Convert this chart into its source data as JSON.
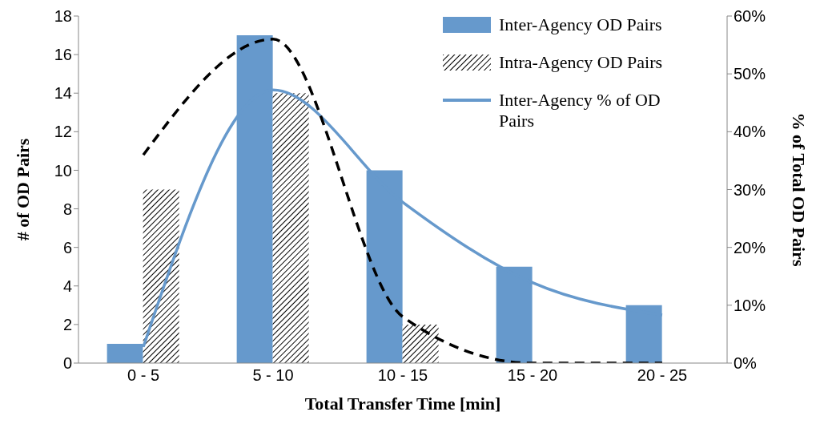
{
  "chart_data": {
    "type": "bar",
    "xlabel": "Total Transfer Time [min]",
    "ylabel": "# of OD Pairs",
    "y2label": "% of Total OD Pairs",
    "categories": [
      "0 - 5",
      "5 - 10",
      "10 - 15",
      "15 - 20",
      "20 - 25"
    ],
    "series": [
      {
        "name": "Inter-Agency OD Pairs",
        "type": "bar",
        "color": "#6699cc",
        "values": [
          1,
          17,
          10,
          5,
          3
        ]
      },
      {
        "name": "Intra-Agency OD Pairs",
        "type": "bar",
        "color": "#000000",
        "values": [
          9,
          14,
          2,
          0,
          0
        ]
      },
      {
        "name": "Inter-Agency % of OD Pairs",
        "type": "line",
        "axis": "y2",
        "color": "#6699cc",
        "line_style": "solid",
        "values": [
          2.8,
          47.2,
          27.8,
          13.9,
          8.3
        ]
      },
      {
        "type": "line",
        "axis": "y2",
        "color": "#000000",
        "line_style": "dashed",
        "values": [
          36,
          56,
          8,
          0,
          0
        ]
      }
    ],
    "ylim": [
      0,
      18
    ],
    "yticks": [
      0,
      2,
      4,
      6,
      8,
      10,
      12,
      14,
      16,
      18
    ],
    "y2lim": [
      0,
      60
    ],
    "y2ticks": [
      {
        "value": 0,
        "label": "0%"
      },
      {
        "value": 10,
        "label": "10%"
      },
      {
        "value": 20,
        "label": "20%"
      },
      {
        "value": 30,
        "label": "30%"
      },
      {
        "value": 40,
        "label": "40%"
      },
      {
        "value": 50,
        "label": "50%"
      },
      {
        "value": 60,
        "label": "60%"
      }
    ],
    "marker": "none",
    "legend": "top right"
  }
}
